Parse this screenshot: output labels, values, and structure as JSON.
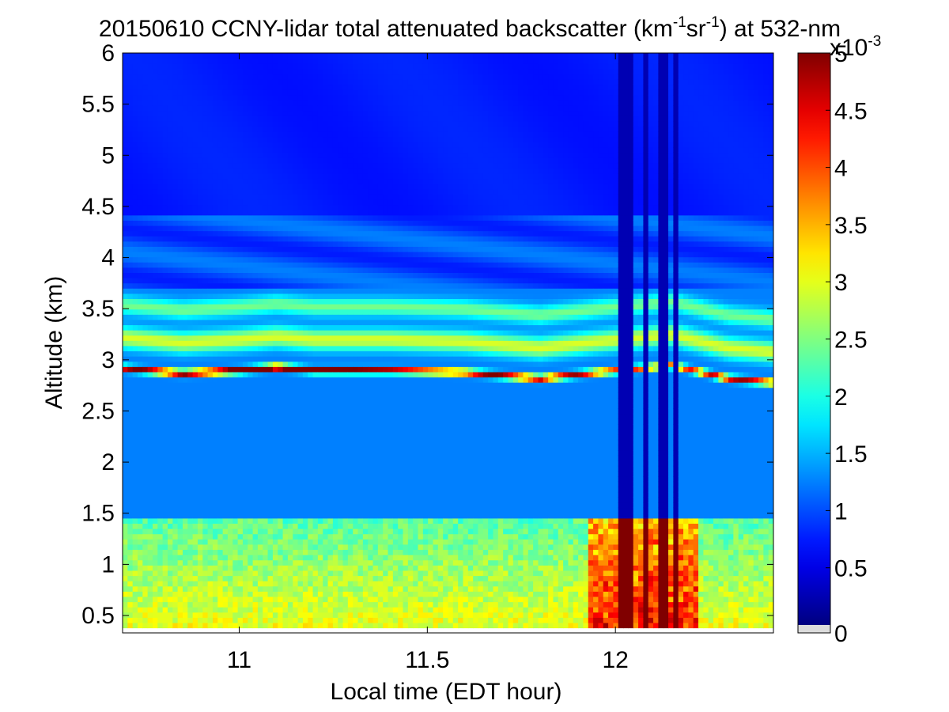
{
  "chart_data": {
    "type": "heatmap",
    "title": {
      "prefix": "20150610 CCNY-lidar total attenuated backscatter (km",
      "sup1": "-1",
      "mid": "sr",
      "sup2": "-1",
      "suffix": ") at 532-nm"
    },
    "xlabel": "Local time (EDT hour)",
    "ylabel": "Altitude (km)",
    "xlim": [
      10.69,
      12.42
    ],
    "ylim": [
      0.33,
      6.0
    ],
    "data_ylim": [
      0.38,
      6.0
    ],
    "x_ticks": [
      11,
      11.5,
      12
    ],
    "x_tick_labels": [
      "11",
      "11.5",
      "12"
    ],
    "y_ticks": [
      0.5,
      1,
      1.5,
      2,
      2.5,
      3,
      3.5,
      4,
      4.5,
      5,
      5.5,
      6
    ],
    "y_tick_labels": [
      "0.5",
      "1",
      "1.5",
      "2",
      "2.5",
      "3",
      "3.5",
      "4",
      "4.5",
      "5",
      "5.5",
      "6"
    ],
    "colorbar": {
      "colormap": "jet",
      "clim": [
        0,
        5
      ],
      "ticks": [
        0,
        0.5,
        1,
        1.5,
        2,
        2.5,
        3,
        3.5,
        4,
        4.5,
        5
      ],
      "tick_labels": [
        "0",
        "0.5",
        "1",
        "1.5",
        "2",
        "2.5",
        "3",
        "3.5",
        "4",
        "4.5",
        "5"
      ],
      "multiplier_base": "x10",
      "multiplier_exp": "-3",
      "no_data_color": "#dcdcdc"
    },
    "grid": false,
    "features": {
      "cloud_base_layer": [
        {
          "time": 10.69,
          "altitude": 2.92,
          "value": 3.6
        },
        {
          "time": 10.85,
          "altitude": 2.87,
          "value": 4.4
        },
        {
          "time": 11.0,
          "altitude": 2.9,
          "value": 4.6
        },
        {
          "time": 11.1,
          "altitude": 2.93,
          "value": 4.9
        },
        {
          "time": 11.2,
          "altitude": 2.9,
          "value": 4.4
        },
        {
          "time": 11.4,
          "altitude": 2.9,
          "value": 3.8
        },
        {
          "time": 11.6,
          "altitude": 2.88,
          "value": 3.7
        },
        {
          "time": 11.8,
          "altitude": 2.82,
          "value": 4.0
        },
        {
          "time": 11.95,
          "altitude": 2.88,
          "value": 3.4
        },
        {
          "time": 12.15,
          "altitude": 2.95,
          "value": 2.8
        },
        {
          "time": 12.3,
          "altitude": 2.82,
          "value": 3.7
        },
        {
          "time": 12.42,
          "altitude": 2.78,
          "value": 3.4
        }
      ],
      "boundary_layer_top_km": 1.45,
      "signal_dropout_times": [
        [
          11.99,
          12.0
        ],
        [
          12.01,
          12.05
        ],
        [
          12.07,
          12.09
        ],
        [
          12.12,
          12.14
        ],
        [
          12.15,
          12.17
        ]
      ]
    }
  }
}
